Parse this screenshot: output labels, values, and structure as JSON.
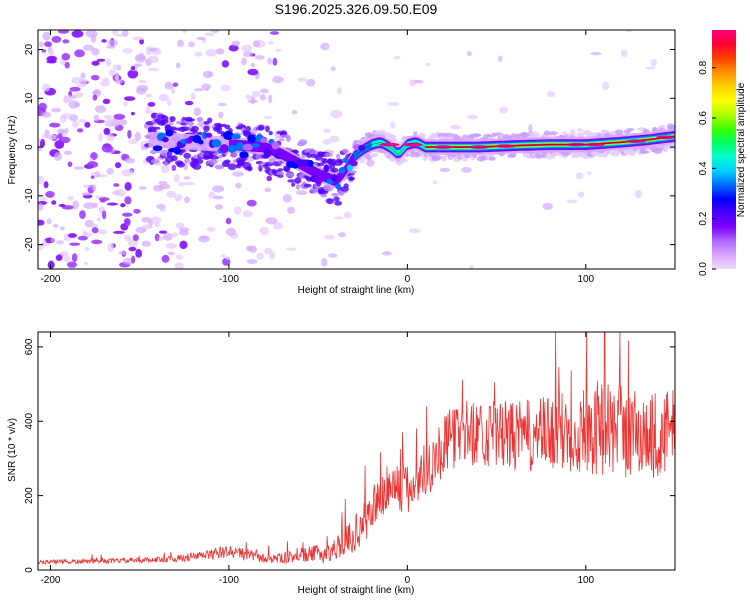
{
  "page": {
    "title": "S196.2025.326.09.50.E09"
  },
  "chart_data": [
    {
      "type": "heatmap",
      "name": "spectrogram",
      "xlabel": "Height of straight line (km)",
      "ylabel": "Frequency (Hz)",
      "xlim": [
        -207,
        150
      ],
      "ylim": [
        -25,
        24
      ],
      "xticks": [
        -200,
        -100,
        0,
        100
      ],
      "yticks": [
        -20,
        -10,
        0,
        10,
        20
      ],
      "colorbar": {
        "label": "Normalized spectral amplitude",
        "range": [
          0,
          0.95
        ],
        "ticks": [
          0.0,
          0.2,
          0.4,
          0.6,
          0.8
        ],
        "tick_labels": [
          "0.0",
          "0.2",
          "0.4",
          "0.6",
          "0.8"
        ],
        "colors": [
          "#f0d8ff",
          "#d9a6ff",
          "#b266ff",
          "#7a00ff",
          "#4b00ff",
          "#0000ff",
          "#0070ff",
          "#00d0ff",
          "#00ffc8",
          "#00ff60",
          "#40ff00",
          "#b4ff00",
          "#ffff00",
          "#ffd000",
          "#ff9000",
          "#ff4000",
          "#ff0030",
          "#ff0080"
        ]
      },
      "center_line": [
        [
          -140,
          1.5
        ],
        [
          -120,
          1.0
        ],
        [
          -100,
          0.5
        ],
        [
          -80,
          0.0
        ],
        [
          -70,
          -1.5
        ],
        [
          -60,
          -3.5
        ],
        [
          -50,
          -5.5
        ],
        [
          -40,
          -7.0
        ],
        [
          -35,
          -5.0
        ],
        [
          -30,
          -2.0
        ],
        [
          -25,
          -0.5
        ],
        [
          -20,
          0.5
        ],
        [
          -15,
          1.0
        ],
        [
          -10,
          0.0
        ],
        [
          -5,
          -1.5
        ],
        [
          0,
          0.5
        ],
        [
          5,
          1.0
        ],
        [
          10,
          0.0
        ],
        [
          20,
          0.0
        ],
        [
          40,
          0.0
        ],
        [
          60,
          0.3
        ],
        [
          80,
          0.5
        ],
        [
          100,
          0.5
        ],
        [
          120,
          1.0
        ],
        [
          135,
          1.5
        ],
        [
          150,
          2.2
        ]
      ]
    },
    {
      "type": "line",
      "name": "snr",
      "xlabel": "Height of straight line (km)",
      "ylabel": "SNR (10 * v/v)",
      "xlim": [
        -207,
        150
      ],
      "ylim": [
        0,
        640
      ],
      "xticks": [
        -200,
        -100,
        0,
        100
      ],
      "yticks": [
        0,
        200,
        400,
        600
      ],
      "color": "#ee3333",
      "series": [
        {
          "name": "SNR",
          "x": [
            -207,
            -190,
            -170,
            -150,
            -130,
            -110,
            -100,
            -90,
            -80,
            -70,
            -60,
            -50,
            -45,
            -40,
            -35,
            -30,
            -25,
            -20,
            -15,
            -10,
            -5,
            0,
            5,
            10,
            15,
            20,
            25,
            30,
            40,
            50,
            60,
            70,
            80,
            90,
            100,
            110,
            120,
            130,
            140,
            150
          ],
          "values": [
            22,
            22,
            24,
            26,
            30,
            42,
            50,
            42,
            30,
            32,
            38,
            45,
            42,
            60,
            75,
            95,
            120,
            160,
            195,
            220,
            225,
            210,
            240,
            270,
            300,
            330,
            355,
            370,
            370,
            365,
            360,
            360,
            365,
            372,
            380,
            385,
            375,
            365,
            360,
            370
          ],
          "noise": [
            5,
            6,
            6,
            7,
            9,
            14,
            18,
            16,
            12,
            14,
            18,
            24,
            26,
            30,
            38,
            48,
            55,
            60,
            62,
            65,
            70,
            72,
            75,
            78,
            80,
            82,
            85,
            88,
            90,
            92,
            95,
            100,
            105,
            115,
            125,
            130,
            130,
            125,
            120,
            120
          ]
        }
      ]
    }
  ]
}
